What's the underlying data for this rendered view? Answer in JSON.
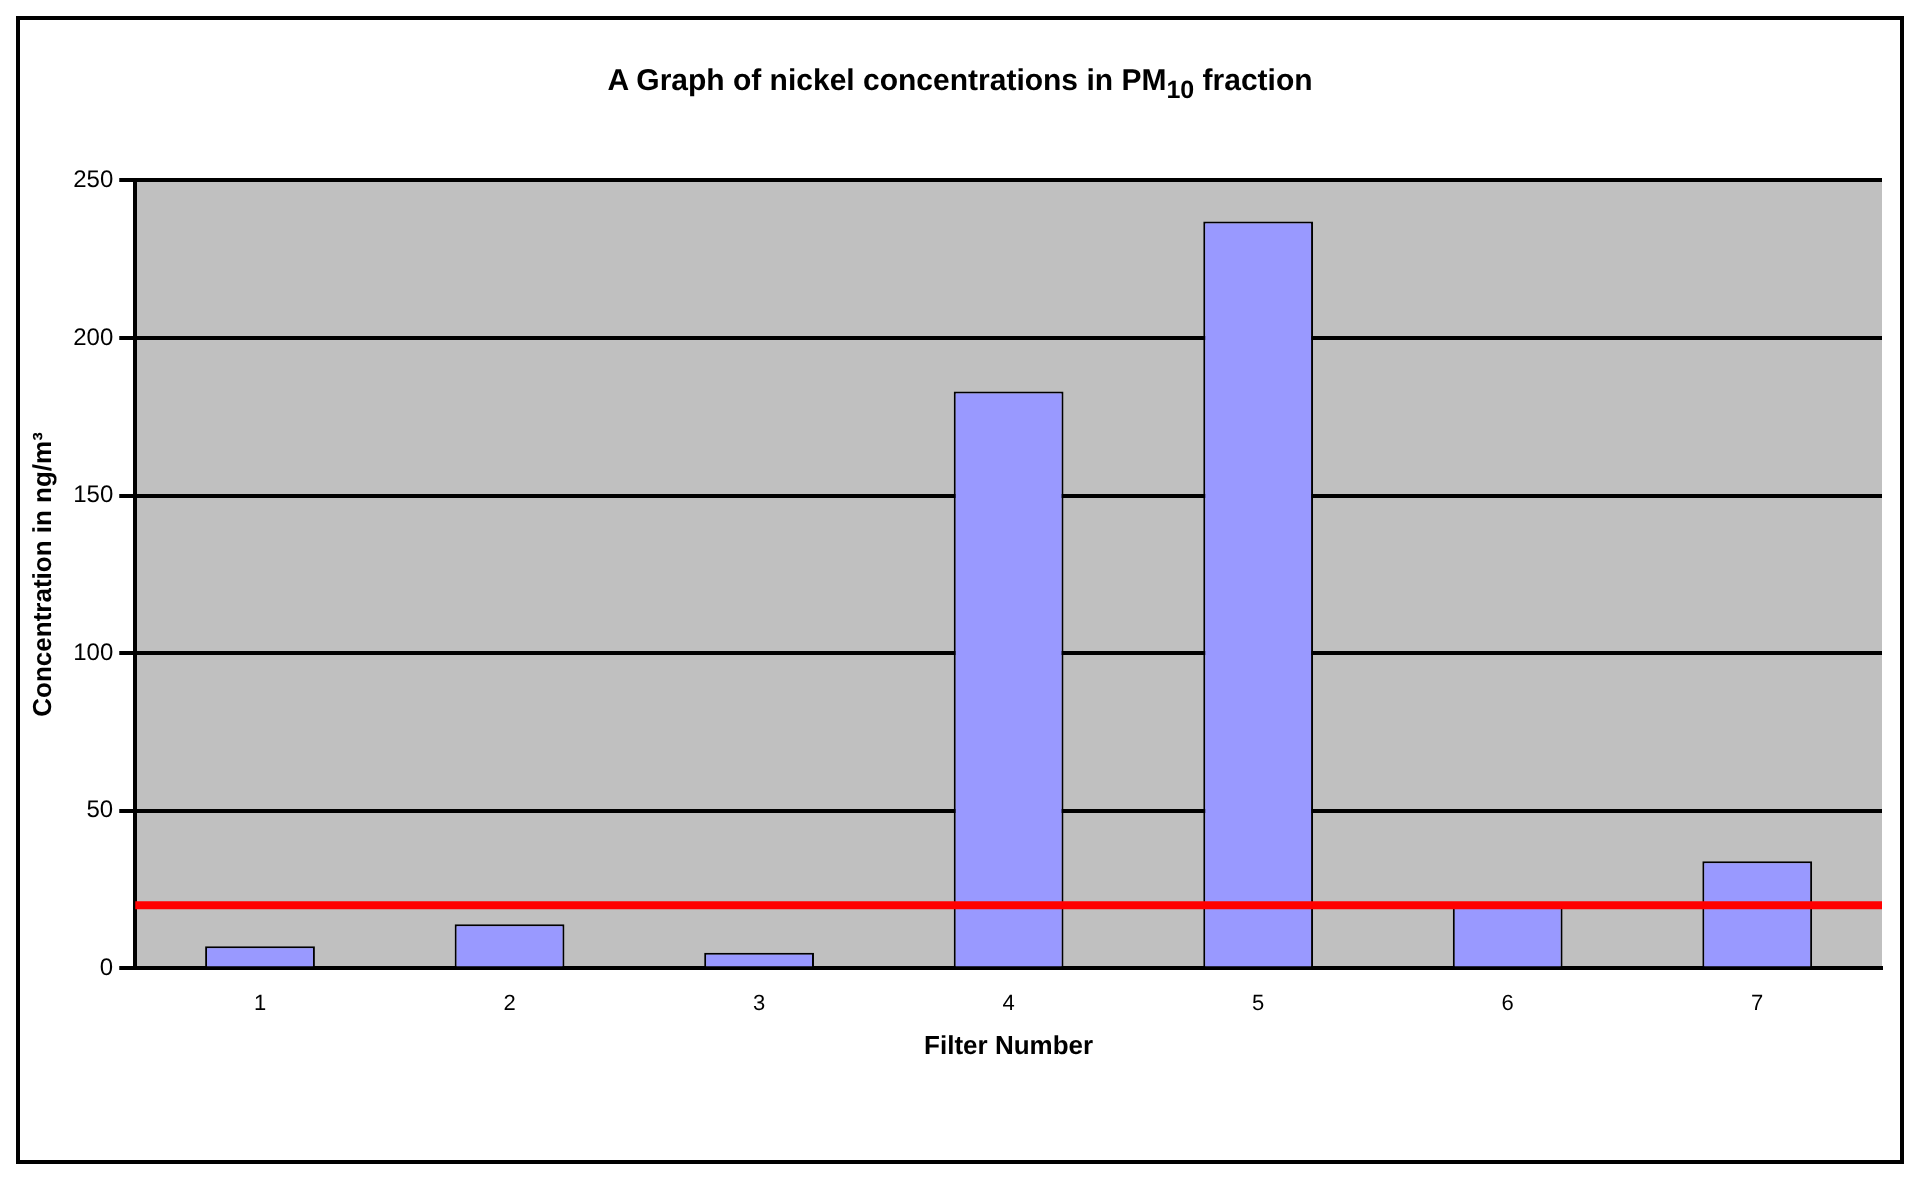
{
  "chart_data": {
    "type": "bar",
    "title": "A Graph of nickel concentrations in PM$_{10}$ fraction",
    "xlabel": "Filter Number",
    "ylabel": "Concentration in ng/m³",
    "categories": [
      "1",
      "2",
      "3",
      "4",
      "5",
      "6",
      "7"
    ],
    "values": [
      7,
      14,
      5,
      183,
      237,
      20,
      34
    ],
    "color": "#9999ff",
    "ylim": [
      0,
      250
    ],
    "yticks": [
      0,
      50,
      100,
      150,
      200,
      250
    ],
    "grid": "y",
    "ref_lines": [
      {
        "axis": "y",
        "value": 20,
        "color": "#ff0000"
      }
    ]
  }
}
